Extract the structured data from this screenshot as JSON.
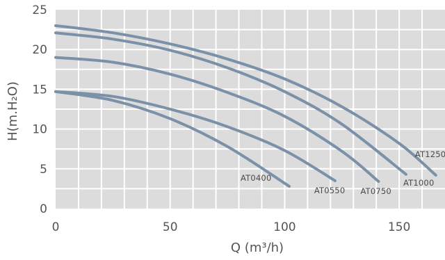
{
  "chart_data": {
    "type": "line",
    "xlabel": "Q (m³/h)",
    "ylabel": "H(m.H₂O)",
    "xlim": [
      0,
      170
    ],
    "ylim": [
      0,
      25
    ],
    "xticks": [
      0,
      50,
      100,
      150
    ],
    "yticks": [
      0,
      5,
      10,
      15,
      20,
      25
    ],
    "grid": true,
    "colors": {
      "plot_bg": "#dcdcdc",
      "grid": "#ffffff",
      "curve": "#7a91a8",
      "text": "#545454"
    },
    "series": [
      {
        "name": "AT1250",
        "x": [
          0,
          25,
          50,
          75,
          100,
          125,
          150,
          166
        ],
        "y": [
          23.0,
          22.1,
          20.7,
          18.8,
          16.3,
          12.8,
          8.2,
          4.2
        ]
      },
      {
        "name": "AT1000",
        "x": [
          0,
          25,
          50,
          75,
          100,
          125,
          153
        ],
        "y": [
          22.1,
          21.3,
          19.9,
          17.7,
          14.7,
          10.6,
          4.3
        ]
      },
      {
        "name": "AT0750",
        "x": [
          0,
          25,
          50,
          75,
          100,
          125,
          141
        ],
        "y": [
          19.0,
          18.4,
          16.9,
          14.6,
          11.6,
          7.2,
          3.4
        ]
      },
      {
        "name": "AT0550",
        "x": [
          0,
          25,
          50,
          75,
          100,
          122
        ],
        "y": [
          14.7,
          14.1,
          12.5,
          10.3,
          7.3,
          3.5
        ]
      },
      {
        "name": "AT0400",
        "x": [
          0,
          25,
          50,
          75,
          102
        ],
        "y": [
          14.7,
          13.6,
          11.3,
          7.8,
          2.8
        ]
      }
    ]
  }
}
